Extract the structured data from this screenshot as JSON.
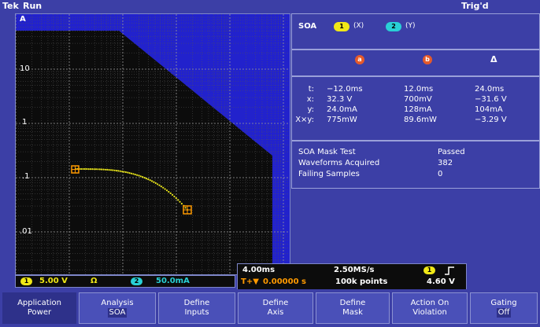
{
  "header": {
    "brand": "Tek",
    "run_state": "Run",
    "trigger_state": "Trig'd"
  },
  "plot": {
    "channel_label": "A",
    "y_ticks": [
      "10",
      "1",
      ".1",
      ".01"
    ]
  },
  "scale_bar": {
    "ch1": {
      "badge": "1",
      "value": "5.00 V",
      "unit_icon": "Ω",
      "color": "#f0e817"
    },
    "ch2": {
      "badge": "2",
      "value": "50.0mA",
      "color": "#29d0d6"
    }
  },
  "soa_panel": {
    "title": "SOA",
    "x_channel": {
      "badge": "1",
      "label": "(X)",
      "color": "#f0e817"
    },
    "y_channel": {
      "badge": "2",
      "label": "(Y)",
      "color": "#29d0d6"
    },
    "cursor_headers": {
      "a": "a",
      "b": "b",
      "delta": "Δ"
    },
    "rows": [
      {
        "label": "t:",
        "a": "−12.0ms",
        "b": "12.0ms",
        "delta": "24.0ms"
      },
      {
        "label": "x:",
        "a": "32.3 V",
        "b": "700mV",
        "delta": "−31.6 V"
      },
      {
        "label": "y:",
        "a": "24.0mA",
        "b": "128mA",
        "delta": "104mA"
      },
      {
        "label": "X×y:",
        "a": "775mW",
        "b": "89.6mW",
        "delta": "−3.29 V"
      }
    ],
    "stats": [
      {
        "label": "SOA Mask Test",
        "value": "Passed"
      },
      {
        "label": "Waveforms Acquired",
        "value": "382"
      },
      {
        "label": "Failing Samples",
        "value": "0"
      }
    ]
  },
  "timebase": {
    "scale": "4.00ms",
    "sample_rate": "2.50MS/s",
    "trigger_channel": "1",
    "trigger_slope_icon": "rising-edge",
    "position": "0.00000 s",
    "record_length": "100k points",
    "trigger_level": "4.60 V"
  },
  "menu": [
    {
      "l1": "Application",
      "l2": "Power"
    },
    {
      "l1": "Analysis",
      "l2": "SOA"
    },
    {
      "l1": "Define",
      "l2": "Inputs"
    },
    {
      "l1": "Define",
      "l2": "Axis"
    },
    {
      "l1": "Define",
      "l2": "Mask"
    },
    {
      "l1": "Action On",
      "l2": "Violation"
    },
    {
      "l1": "Gating",
      "l2": "Off"
    }
  ],
  "colors": {
    "bg": "#3c3fa6",
    "mask": "#2222cc",
    "trace": "#e6e21a",
    "cursor": "#ff9a00"
  }
}
